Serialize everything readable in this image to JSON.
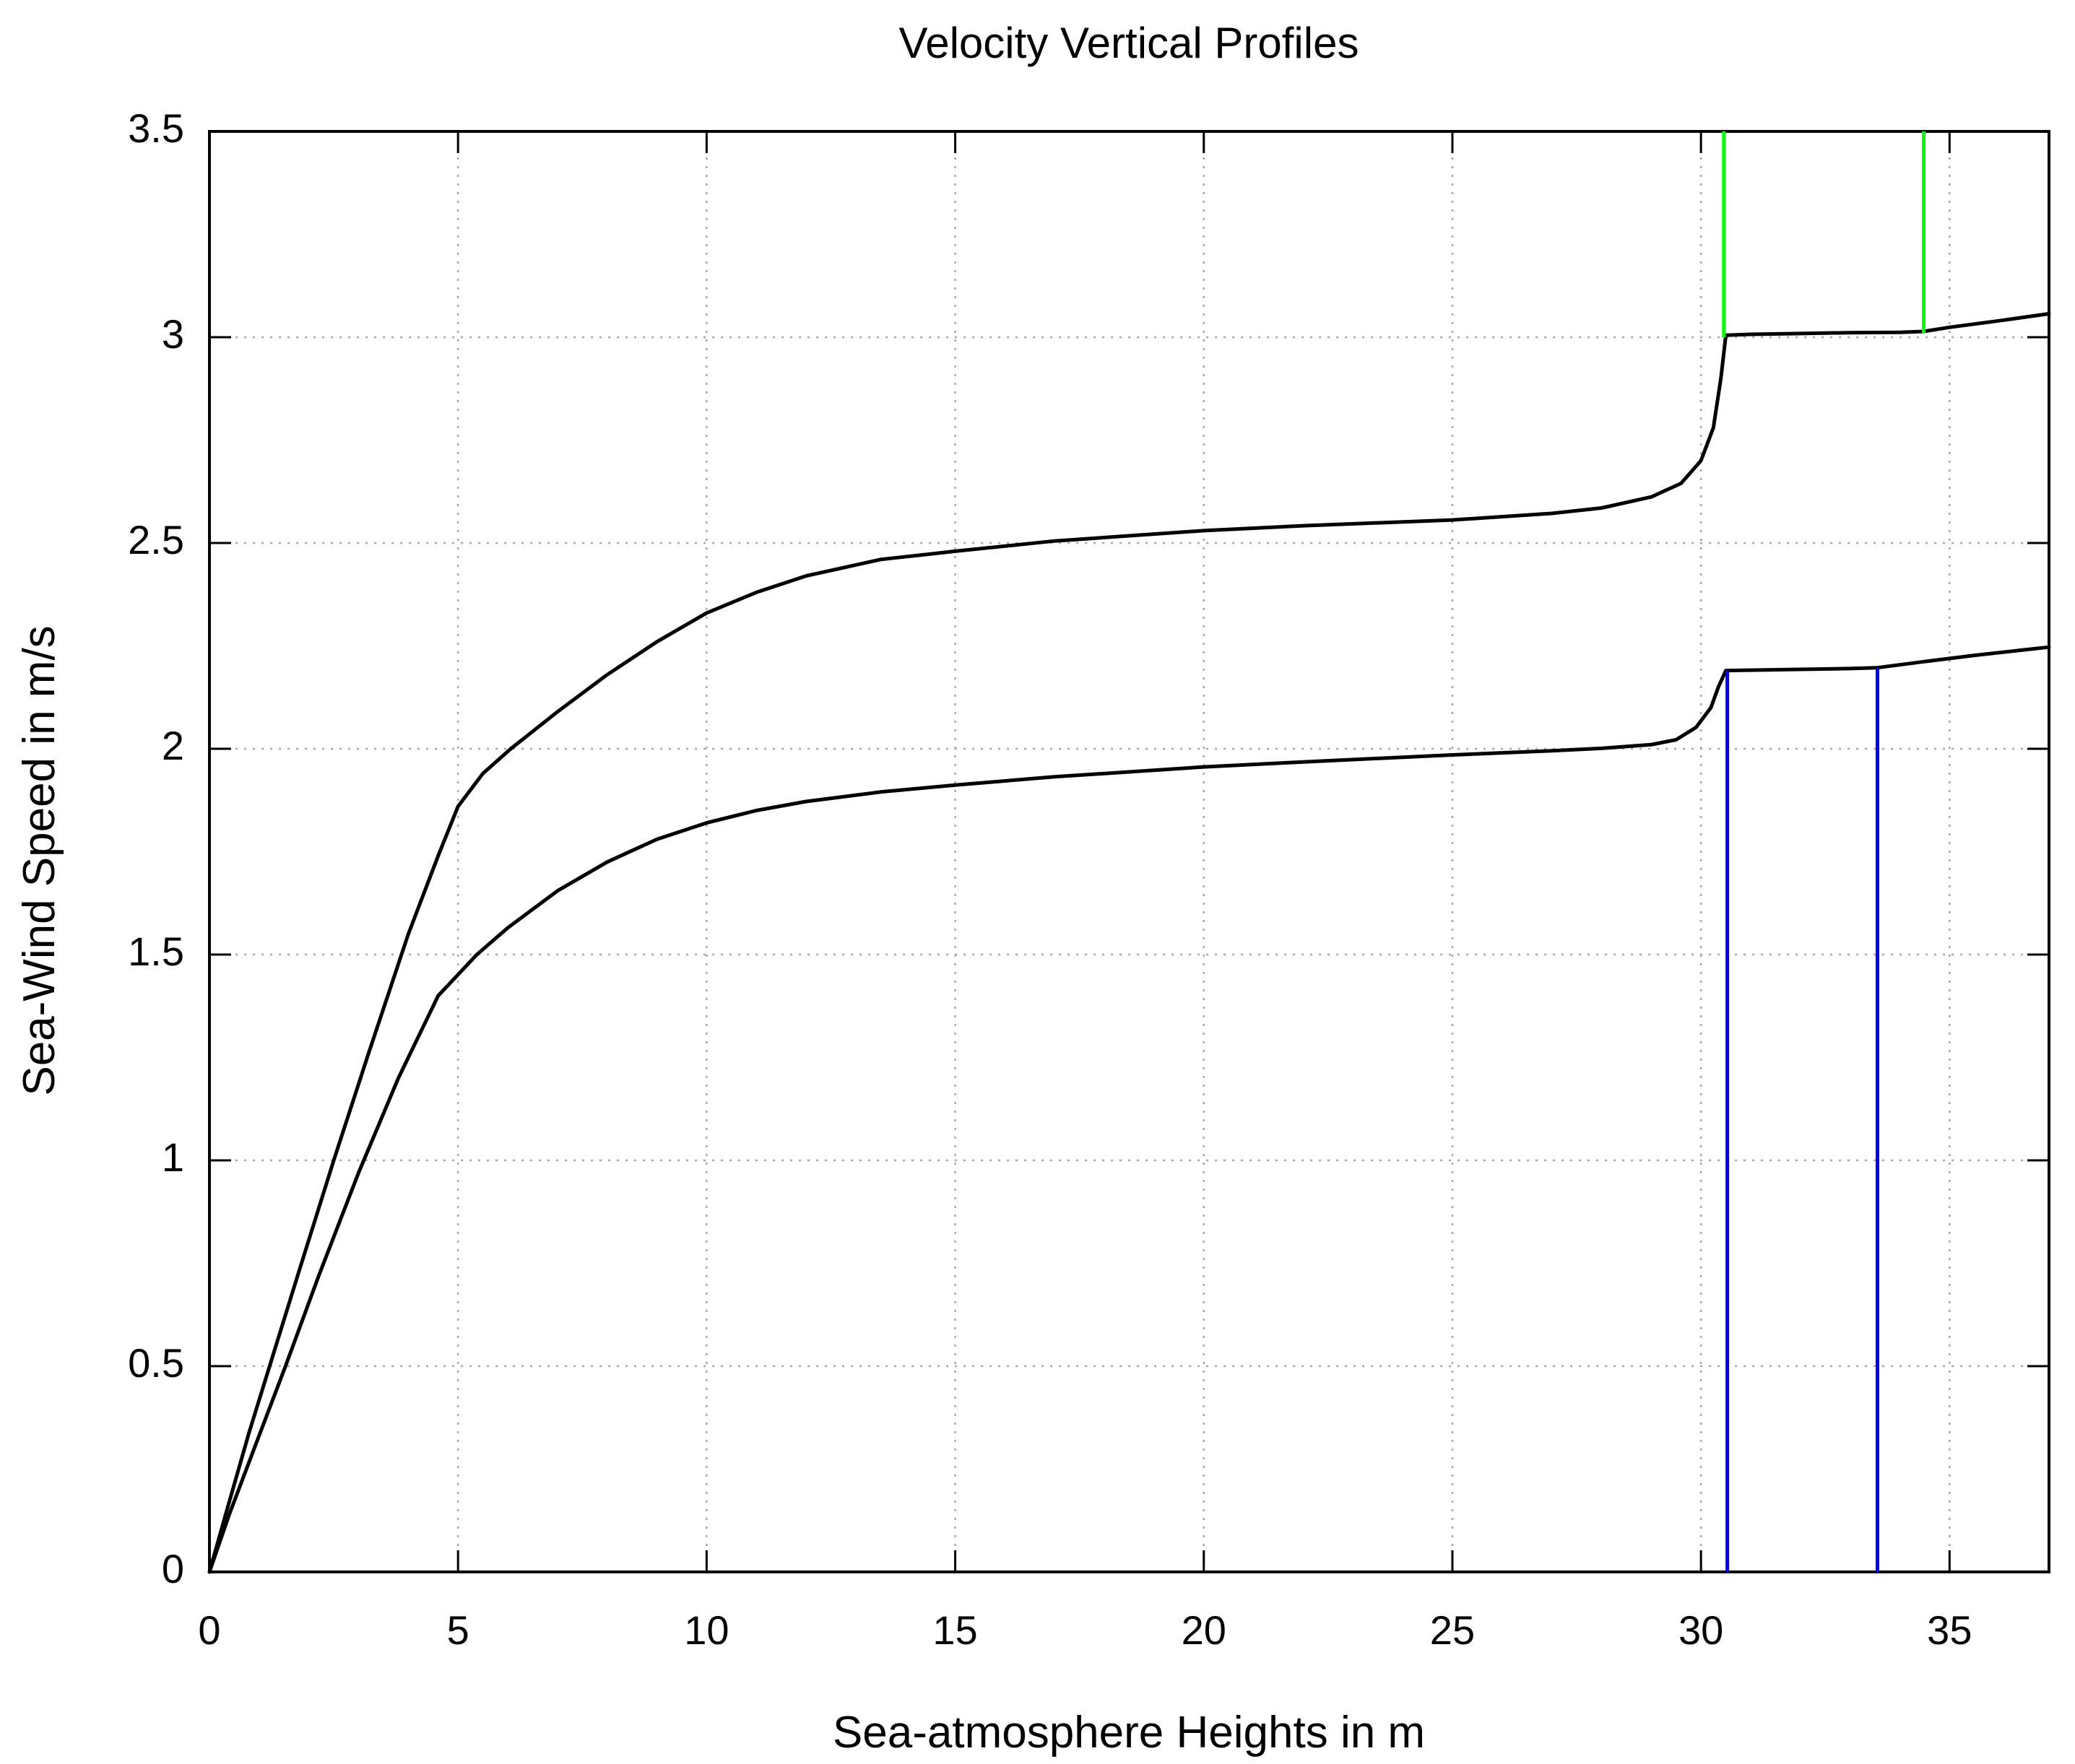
{
  "page": {
    "background": "#ffffff"
  },
  "colors": {
    "axis": "#000000",
    "grid": "#a8a8a8",
    "curve": "#000000",
    "green_marker": "#00ff00",
    "blue_marker": "#0000ff"
  },
  "chart_data": {
    "type": "line",
    "title": "Velocity Vertical Profiles",
    "xlabel": "Sea-atmosphere Heights in m",
    "ylabel": "Sea-Wind Speed in m/s",
    "xlim": [
      0,
      37
    ],
    "ylim": [
      0,
      3.5
    ],
    "xticks": [
      0,
      5,
      10,
      15,
      20,
      25,
      30,
      35
    ],
    "xtick_labels": [
      "0",
      "5",
      "10",
      "15",
      "20",
      "25",
      "30",
      "35"
    ],
    "yticks": [
      0,
      0.5,
      1,
      1.5,
      2,
      2.5,
      3,
      3.5
    ],
    "ytick_labels": [
      "0",
      "0.5",
      "1",
      "1.5",
      "2",
      "2.5",
      "3",
      "3.5"
    ],
    "grid": true,
    "grid_style": "dotted",
    "legend_position": "none",
    "series": [
      {
        "name": "upper-velocity-profile",
        "color": "#000000",
        "width": 5,
        "points": [
          [
            0,
            0
          ],
          [
            0.35,
            0.15
          ],
          [
            0.8,
            0.34
          ],
          [
            1.21,
            0.5
          ],
          [
            1.8,
            0.73
          ],
          [
            2.5,
            1.0
          ],
          [
            3.2,
            1.26
          ],
          [
            4.0,
            1.55
          ],
          [
            4.6,
            1.74
          ],
          [
            5.0,
            1.86
          ],
          [
            5.5,
            1.94
          ],
          [
            6.06,
            2.0
          ],
          [
            7,
            2.09
          ],
          [
            8,
            2.18
          ],
          [
            9,
            2.26
          ],
          [
            10,
            2.33
          ],
          [
            11,
            2.38
          ],
          [
            12,
            2.42
          ],
          [
            13.5,
            2.46
          ],
          [
            15,
            2.48
          ],
          [
            17,
            2.505
          ],
          [
            20,
            2.53
          ],
          [
            22,
            2.542
          ],
          [
            25,
            2.556
          ],
          [
            27,
            2.572
          ],
          [
            28,
            2.585
          ],
          [
            29,
            2.612
          ],
          [
            29.6,
            2.645
          ],
          [
            30.0,
            2.7
          ],
          [
            30.25,
            2.78
          ],
          [
            30.4,
            2.9
          ],
          [
            30.5,
            3.005
          ],
          [
            31,
            3.007
          ],
          [
            32,
            3.009
          ],
          [
            33,
            3.011
          ],
          [
            34,
            3.012
          ],
          [
            34.48,
            3.014
          ],
          [
            35,
            3.024
          ],
          [
            36,
            3.04
          ],
          [
            37,
            3.057
          ]
        ]
      },
      {
        "name": "lower-velocity-profile",
        "color": "#000000",
        "width": 5,
        "points": [
          [
            0,
            0
          ],
          [
            0.4,
            0.14
          ],
          [
            0.9,
            0.3
          ],
          [
            1.53,
            0.5
          ],
          [
            2.2,
            0.72
          ],
          [
            3.0,
            0.97
          ],
          [
            3.8,
            1.2
          ],
          [
            4.6,
            1.4
          ],
          [
            5.38,
            1.5
          ],
          [
            6,
            1.565
          ],
          [
            7,
            1.655
          ],
          [
            8,
            1.725
          ],
          [
            9,
            1.78
          ],
          [
            10,
            1.82
          ],
          [
            11,
            1.85
          ],
          [
            12,
            1.872
          ],
          [
            13.5,
            1.895
          ],
          [
            15,
            1.912
          ],
          [
            17,
            1.932
          ],
          [
            20,
            1.956
          ],
          [
            22,
            1.968
          ],
          [
            25,
            1.985
          ],
          [
            27,
            1.995
          ],
          [
            28,
            2.001
          ],
          [
            29,
            2.01
          ],
          [
            29.5,
            2.022
          ],
          [
            29.9,
            2.052
          ],
          [
            30.2,
            2.1
          ],
          [
            30.35,
            2.15
          ],
          [
            30.5,
            2.19
          ],
          [
            31,
            2.191
          ],
          [
            32,
            2.193
          ],
          [
            33,
            2.195
          ],
          [
            33.55,
            2.197
          ],
          [
            34.5,
            2.212
          ],
          [
            35.5,
            2.227
          ],
          [
            37,
            2.247
          ]
        ]
      }
    ],
    "vlines": [
      {
        "name": "green-marker-left",
        "color": "#00ff00",
        "width": 5,
        "x": 30.46,
        "y1": 3.0,
        "y2": 3.5
      },
      {
        "name": "green-marker-right",
        "color": "#00ff00",
        "width": 5,
        "x": 34.48,
        "y1": 3.01,
        "y2": 3.5
      },
      {
        "name": "blue-marker-left",
        "color": "#0000ff",
        "width": 5,
        "x": 30.53,
        "y1": 0,
        "y2": 2.19
      },
      {
        "name": "blue-marker-right",
        "color": "#0000ff",
        "width": 5,
        "x": 33.55,
        "y1": 0,
        "y2": 2.197
      }
    ]
  }
}
